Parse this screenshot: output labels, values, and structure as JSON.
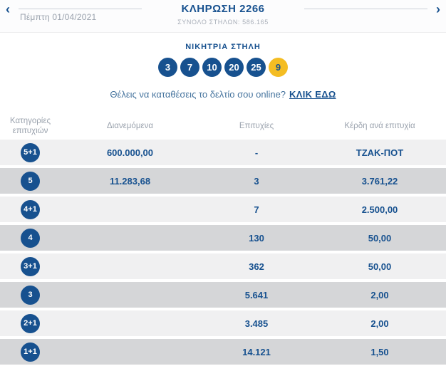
{
  "header": {
    "title": "ΚΛΗΡΩΣΗ 2266",
    "subtitle": "ΣΥΝΟΛΟ ΣΤΗΛΩΝ: 586.165",
    "date": "Πέμπτη 01/04/2021",
    "prev_icon": "‹",
    "next_icon": "›"
  },
  "winning": {
    "title": "ΝΙΚΗΤΡΙΑ ΣΤΗΛΗ",
    "numbers": [
      "3",
      "7",
      "10",
      "20",
      "25"
    ],
    "joker": "9"
  },
  "cta": {
    "question": "Θέλεις να καταθέσεις το δελτίο σου online?",
    "link_label": "ΚΛΙΚ ΕΔΩ"
  },
  "table": {
    "headers": {
      "category": "Κατηγορίες επιτυχιών",
      "distributed": "Διανεμόμενα",
      "wins": "Επιτυχίες",
      "prize": "Κέρδη ανά επιτυχία"
    },
    "rows": [
      {
        "category": "5+1",
        "distributed": "600.000,00",
        "wins": "-",
        "prize": "ΤΖΑΚ-ΠΟΤ"
      },
      {
        "category": "5",
        "distributed": "11.283,68",
        "wins": "3",
        "prize": "3.761,22"
      },
      {
        "category": "4+1",
        "distributed": "",
        "wins": "7",
        "prize": "2.500,00"
      },
      {
        "category": "4",
        "distributed": "",
        "wins": "130",
        "prize": "50,00"
      },
      {
        "category": "3+1",
        "distributed": "",
        "wins": "362",
        "prize": "50,00"
      },
      {
        "category": "3",
        "distributed": "",
        "wins": "5.641",
        "prize": "2,00"
      },
      {
        "category": "2+1",
        "distributed": "",
        "wins": "3.485",
        "prize": "2,00"
      },
      {
        "category": "1+1",
        "distributed": "",
        "wins": "14.121",
        "prize": "1,50"
      }
    ]
  },
  "colors": {
    "navy": "#17518f",
    "gold": "#f4bd23",
    "row_light": "#f0f0f1",
    "row_dark": "#d5d6d8",
    "gray_text": "#9aa2ad"
  }
}
